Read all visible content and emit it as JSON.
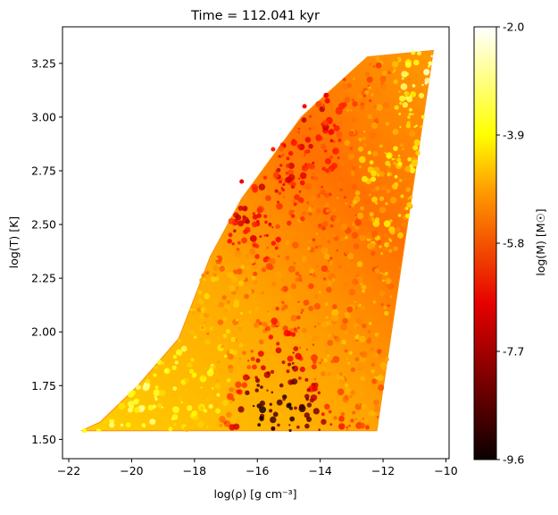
{
  "chart_data": {
    "type": "scatter",
    "title": "Time = 112.041 kyr",
    "xlabel": "log(ρ) [g cm⁻³]",
    "ylabel": "log(T) [K]",
    "xlim": [
      -22.2,
      -9.9
    ],
    "ylim": [
      1.41,
      3.42
    ],
    "xticks": [
      -22,
      -20,
      -18,
      -16,
      -14,
      -12,
      -10
    ],
    "yticks": [
      1.5,
      1.75,
      2.0,
      2.25,
      2.5,
      2.75,
      3.0,
      3.25
    ],
    "ytick_labels": [
      "1.50",
      "1.75",
      "2.00",
      "2.25",
      "2.50",
      "2.75",
      "3.00",
      "3.25"
    ],
    "grid": false,
    "colormap": "hot",
    "colorbar": {
      "label": "log(M) [M☉]",
      "range": [
        -9.6,
        -2.0
      ],
      "ticks": [
        -9.6,
        -7.7,
        -5.8,
        -3.9,
        -2.0
      ],
      "tick_labels": [
        "-9.6",
        "-7.7",
        "-5.8",
        "-3.9",
        "-2.0"
      ]
    },
    "region": {
      "description_polygon_in_data_units": [
        [
          -21.6,
          1.54
        ],
        [
          -12.2,
          1.54
        ],
        [
          -10.4,
          3.31
        ],
        [
          -12.5,
          3.28
        ],
        [
          -14.6,
          3.0
        ],
        [
          -16.5,
          2.62
        ],
        [
          -17.5,
          2.35
        ],
        [
          -18.5,
          1.97
        ],
        [
          -19.8,
          1.75
        ],
        [
          -21.0,
          1.58
        ]
      ]
    },
    "approx_samples": [
      {
        "x": -21.5,
        "y": 1.54,
        "c": -3.9
      },
      {
        "x": -20.0,
        "y": 1.65,
        "c": -3.5
      },
      {
        "x": -18.0,
        "y": 1.8,
        "c": -4.0
      },
      {
        "x": -17.0,
        "y": 2.1,
        "c": -5.0
      },
      {
        "x": -16.5,
        "y": 2.7,
        "c": -7.0
      },
      {
        "x": -15.5,
        "y": 2.85,
        "c": -6.5
      },
      {
        "x": -15.5,
        "y": 1.55,
        "c": -8.8
      },
      {
        "x": -14.5,
        "y": 3.05,
        "c": -6.8
      },
      {
        "x": -14.0,
        "y": 2.4,
        "c": -5.5
      },
      {
        "x": -13.0,
        "y": 2.0,
        "c": -5.2
      },
      {
        "x": -12.5,
        "y": 3.2,
        "c": -5.5
      },
      {
        "x": -11.5,
        "y": 2.8,
        "c": -4.5
      },
      {
        "x": -10.5,
        "y": 3.25,
        "c": -3.0
      }
    ]
  }
}
